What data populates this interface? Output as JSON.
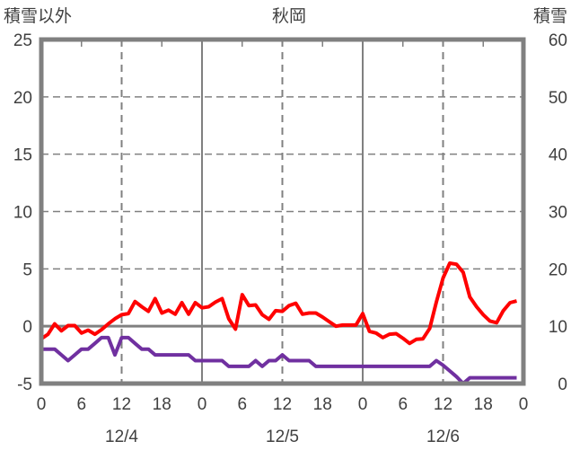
{
  "chart_data": {
    "type": "line",
    "title": "秋岡",
    "ylabel_left": "積雪以外",
    "ylabel_right": "積雪",
    "ylim_left": [
      -5,
      25
    ],
    "ylim_right": [
      0,
      60
    ],
    "yticks_left": [
      "-5",
      "0",
      "5",
      "10",
      "15",
      "20",
      "25"
    ],
    "yticks_right": [
      "0",
      "10",
      "20",
      "30",
      "40",
      "50",
      "60"
    ],
    "xlim_hours": [
      0,
      72
    ],
    "xtick_labels": [
      "0",
      "6",
      "12",
      "18",
      "0",
      "6",
      "12",
      "18",
      "0",
      "6",
      "12",
      "18",
      "0"
    ],
    "date_labels": [
      "12/4",
      "12/5",
      "12/6"
    ],
    "grid": true,
    "series": [
      {
        "name": "red",
        "axis": "left",
        "color": "#ff0000",
        "x": [
          0,
          1,
          2,
          3,
          4,
          5,
          6,
          7,
          8,
          9,
          10,
          11,
          12,
          13,
          14,
          15,
          16,
          17,
          18,
          19,
          20,
          21,
          22,
          23,
          24,
          25,
          26,
          27,
          28,
          29,
          30,
          31,
          32,
          33,
          34,
          35,
          36,
          37,
          38,
          39,
          40,
          41,
          42,
          43,
          44,
          45,
          46,
          47,
          48,
          49,
          50,
          51,
          52,
          53,
          54,
          55,
          56,
          57,
          58,
          59,
          60,
          61,
          62,
          63,
          64,
          65,
          66,
          67,
          68,
          69,
          70,
          71
        ],
        "values": [
          -1.1,
          -0.7,
          0.2,
          -0.4,
          0.05,
          0.05,
          -0.6,
          -0.35,
          -0.7,
          -0.3,
          0.2,
          0.65,
          1.0,
          1.1,
          2.15,
          1.7,
          1.3,
          2.4,
          1.15,
          1.4,
          1.05,
          2.05,
          1.05,
          2.05,
          1.6,
          1.7,
          2.1,
          2.4,
          0.65,
          -0.25,
          2.75,
          1.8,
          1.85,
          1.0,
          0.6,
          1.35,
          1.3,
          1.8,
          2.0,
          1.05,
          1.15,
          1.15,
          0.8,
          0.4,
          0.0,
          0.1,
          0.1,
          0.1,
          1.1,
          -0.45,
          -0.6,
          -1.0,
          -0.7,
          -0.65,
          -1.05,
          -1.5,
          -1.15,
          -1.1,
          -0.2,
          2.1,
          4.2,
          5.5,
          5.4,
          4.7,
          2.55,
          1.7,
          1.0,
          0.45,
          0.3,
          1.35,
          2.05,
          2.2
        ]
      },
      {
        "name": "purple",
        "axis": "right",
        "color": "#7030a0",
        "x": [
          0,
          1,
          2,
          3,
          4,
          5,
          6,
          7,
          8,
          9,
          10,
          11,
          12,
          13,
          14,
          15,
          16,
          17,
          18,
          19,
          20,
          21,
          22,
          23,
          24,
          25,
          26,
          27,
          28,
          29,
          30,
          31,
          32,
          33,
          34,
          35,
          36,
          37,
          38,
          39,
          40,
          41,
          42,
          43,
          44,
          45,
          46,
          47,
          48,
          49,
          50,
          51,
          52,
          53,
          54,
          55,
          56,
          57,
          58,
          59,
          60,
          61,
          62,
          63,
          64,
          65,
          66,
          67,
          68,
          69,
          70,
          71
        ],
        "values": [
          6,
          6,
          6,
          5,
          4,
          5,
          6,
          6,
          7,
          8,
          8,
          5,
          8,
          8,
          7,
          6,
          6,
          5,
          5,
          5,
          5,
          5,
          5,
          4,
          4,
          4,
          4,
          4,
          3,
          3,
          3,
          3,
          4,
          3,
          4,
          4,
          5,
          4,
          4,
          4,
          4,
          3,
          3,
          3,
          3,
          3,
          3,
          3,
          3,
          3,
          3,
          3,
          3,
          3,
          3,
          3,
          3,
          3,
          3,
          4,
          3.2,
          2.2,
          1.2,
          0,
          1,
          1,
          1,
          1,
          1,
          1,
          1,
          1
        ]
      }
    ]
  }
}
